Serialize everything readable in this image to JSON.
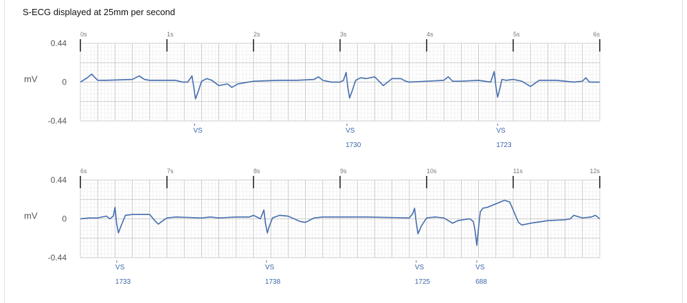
{
  "header": {
    "title": "S-ECG displayed at 25mm per second"
  },
  "chart_data": [
    {
      "type": "line",
      "title": "",
      "ylabel": "mV",
      "xlim": [
        0,
        6
      ],
      "ylim": [
        -0.44,
        0.44
      ],
      "x_ticks": [
        "0s",
        "1s",
        "2s",
        "3s",
        "4s",
        "5s",
        "6s"
      ],
      "y_ticks": [
        "0.44",
        "0",
        "-0.44"
      ],
      "grid": true,
      "markers": [
        {
          "x": 1.32,
          "label": "VS",
          "interval": ""
        },
        {
          "x": 3.08,
          "label": "VS",
          "interval": "1730"
        },
        {
          "x": 4.82,
          "label": "VS",
          "interval": "1723"
        }
      ],
      "series": [
        {
          "color": "#4a72b0",
          "x": [
            0.0,
            0.08,
            0.13,
            0.16,
            0.2,
            0.3,
            0.6,
            0.68,
            0.74,
            0.8,
            1.1,
            1.18,
            1.24,
            1.29,
            1.31,
            1.33,
            1.36,
            1.4,
            1.46,
            1.52,
            1.6,
            1.7,
            1.75,
            1.82,
            2.0,
            2.3,
            2.5,
            2.7,
            2.75,
            2.8,
            2.9,
            3.0,
            3.04,
            3.07,
            3.09,
            3.11,
            3.14,
            3.18,
            3.24,
            3.3,
            3.4,
            3.5,
            3.6,
            3.7,
            3.76,
            3.8,
            4.0,
            4.2,
            4.25,
            4.3,
            4.4,
            4.6,
            4.74,
            4.78,
            4.8,
            4.82,
            4.84,
            4.87,
            4.92,
            5.0,
            5.1,
            5.2,
            5.3,
            5.5,
            5.7,
            5.8,
            5.84,
            5.88,
            6.0
          ],
          "y": [
            0.0,
            0.05,
            0.09,
            0.06,
            0.02,
            0.02,
            0.03,
            0.07,
            0.03,
            0.02,
            0.02,
            0.0,
            0.0,
            0.07,
            -0.06,
            -0.19,
            -0.11,
            0.01,
            0.04,
            0.02,
            -0.04,
            -0.02,
            -0.06,
            -0.02,
            0.01,
            0.02,
            0.02,
            0.03,
            0.06,
            0.02,
            0.0,
            0.0,
            0.02,
            0.11,
            -0.06,
            -0.18,
            -0.1,
            0.02,
            0.05,
            0.04,
            0.06,
            -0.04,
            0.04,
            0.04,
            0.01,
            0.0,
            0.01,
            0.02,
            0.06,
            0.01,
            0.01,
            0.02,
            0.0,
            0.12,
            -0.05,
            -0.17,
            -0.1,
            0.03,
            0.02,
            0.03,
            0.01,
            -0.05,
            0.02,
            0.02,
            0.0,
            0.01,
            0.05,
            0.0,
            0.0
          ]
        }
      ]
    },
    {
      "type": "line",
      "title": "",
      "ylabel": "mV",
      "xlim": [
        6,
        12
      ],
      "ylim": [
        -0.44,
        0.44
      ],
      "x_ticks": [
        "6s",
        "7s",
        "8s",
        "9s",
        "10s",
        "11s",
        "12s"
      ],
      "y_ticks": [
        "0.44",
        "0",
        "-0.44"
      ],
      "grid": true,
      "markers": [
        {
          "x": 6.42,
          "label": "VS",
          "interval": "1733"
        },
        {
          "x": 8.15,
          "label": "VS",
          "interval": "1738"
        },
        {
          "x": 9.88,
          "label": "VS",
          "interval": "1725"
        },
        {
          "x": 10.58,
          "label": "VS",
          "interval": "688"
        }
      ],
      "series": [
        {
          "color": "#4a72b0",
          "x": [
            6.0,
            6.1,
            6.2,
            6.3,
            6.34,
            6.38,
            6.4,
            6.42,
            6.44,
            6.47,
            6.52,
            6.6,
            6.8,
            6.86,
            6.9,
            6.94,
            7.0,
            7.1,
            7.4,
            7.5,
            7.6,
            7.8,
            7.95,
            8.0,
            8.08,
            8.12,
            8.14,
            8.16,
            8.18,
            8.22,
            8.3,
            8.4,
            8.54,
            8.6,
            8.66,
            8.7,
            8.8,
            9.0,
            9.3,
            9.8,
            9.84,
            9.86,
            9.88,
            9.9,
            9.94,
            10.0,
            10.1,
            10.2,
            10.3,
            10.36,
            10.42,
            10.5,
            10.54,
            10.56,
            10.58,
            10.6,
            10.62,
            10.65,
            10.7,
            10.8,
            10.9,
            10.96,
            11.0,
            11.06,
            11.1,
            11.2,
            11.4,
            11.6,
            11.66,
            11.7,
            11.8,
            11.9,
            11.95,
            12.0
          ],
          "y": [
            0.0,
            0.01,
            0.01,
            0.03,
            0.0,
            0.03,
            0.13,
            -0.06,
            -0.16,
            -0.08,
            0.04,
            0.05,
            0.05,
            -0.02,
            -0.06,
            -0.03,
            0.01,
            0.02,
            0.01,
            0.02,
            0.01,
            0.02,
            0.02,
            0.04,
            0.0,
            0.1,
            -0.06,
            -0.16,
            -0.09,
            0.01,
            0.04,
            0.03,
            -0.03,
            -0.04,
            -0.01,
            0.01,
            0.02,
            0.02,
            0.02,
            0.01,
            0.06,
            0.12,
            -0.04,
            -0.17,
            -0.08,
            0.01,
            0.02,
            0.01,
            -0.05,
            -0.02,
            -0.01,
            0.0,
            -0.03,
            -0.14,
            -0.3,
            -0.1,
            0.08,
            0.12,
            0.13,
            0.17,
            0.21,
            0.19,
            0.1,
            -0.04,
            -0.07,
            -0.05,
            -0.02,
            -0.01,
            0.0,
            0.04,
            0.01,
            0.02,
            0.04,
            0.0
          ]
        }
      ]
    }
  ]
}
